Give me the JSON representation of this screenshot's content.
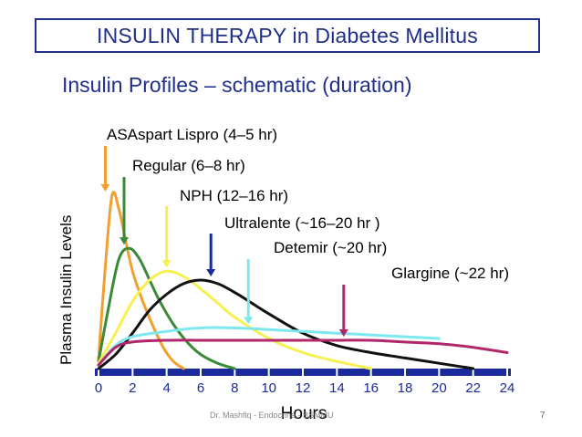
{
  "slide": {
    "title": "INSULIN THERAPY in Diabetes Mellitus",
    "subtitle": "Insulin Profiles – schematic (duration)",
    "footer": "Dr. Mashfiq - Endocrine - BSMMU",
    "page_number": "7"
  },
  "chart_data": {
    "type": "line",
    "xlabel": "Hours",
    "ylabel": "Plasma Insulin Levels",
    "xticks": [
      "0",
      "2",
      "4",
      "6",
      "8",
      "10",
      "12",
      "14",
      "16",
      "18",
      "20",
      "22",
      "24"
    ],
    "xlim": [
      0,
      24
    ],
    "ylim": [
      0,
      1
    ],
    "grid": false,
    "series": [
      {
        "name": "ASAspart  Lispro   (4–5 hr)",
        "color": "#f0a030",
        "x": [
          0,
          0.4,
          0.8,
          1.2,
          1.6,
          2.0,
          2.6,
          3.2,
          3.8,
          4.4,
          5.0
        ],
        "y": [
          0.05,
          0.58,
          0.98,
          0.9,
          0.72,
          0.55,
          0.38,
          0.24,
          0.12,
          0.04,
          0.0
        ]
      },
      {
        "name": "Regular (6–8 hr)",
        "color": "#3a8a3a",
        "x": [
          0,
          0.6,
          1.2,
          1.8,
          2.4,
          3.0,
          3.6,
          4.4,
          5.2,
          6.0,
          7.0,
          8.0
        ],
        "y": [
          0.04,
          0.35,
          0.62,
          0.68,
          0.62,
          0.5,
          0.38,
          0.25,
          0.15,
          0.08,
          0.03,
          0.0
        ]
      },
      {
        "name": "NPH (12–16 hr)",
        "color": "#f8f050",
        "x": [
          0,
          1,
          2,
          3,
          4,
          5,
          6,
          7,
          8,
          10,
          12,
          14,
          16
        ],
        "y": [
          0.03,
          0.2,
          0.38,
          0.5,
          0.55,
          0.52,
          0.45,
          0.37,
          0.29,
          0.17,
          0.09,
          0.04,
          0.0
        ]
      },
      {
        "name": "Ultralente (~16–20 hr )",
        "color": "#111111",
        "x": [
          0,
          1,
          2,
          3,
          4,
          5,
          6,
          7,
          8,
          9,
          10,
          12,
          14,
          16,
          18,
          20,
          22
        ],
        "y": [
          0.0,
          0.08,
          0.2,
          0.33,
          0.42,
          0.48,
          0.5,
          0.48,
          0.43,
          0.37,
          0.31,
          0.2,
          0.13,
          0.09,
          0.06,
          0.03,
          0.0
        ]
      },
      {
        "name": "Detemir (~20 hr)",
        "color": "#7ee8f0",
        "x": [
          0,
          1,
          2,
          4,
          6,
          8,
          10,
          12,
          14,
          16,
          18,
          20
        ],
        "y": [
          0.02,
          0.13,
          0.18,
          0.21,
          0.23,
          0.23,
          0.22,
          0.21,
          0.2,
          0.19,
          0.18,
          0.17
        ]
      },
      {
        "name": "Glargine (~22 hr)",
        "color": "#b0286a",
        "x": [
          0,
          1,
          2,
          4,
          6,
          8,
          10,
          12,
          14,
          16,
          18,
          20,
          22,
          24
        ],
        "y": [
          0.02,
          0.12,
          0.15,
          0.16,
          0.16,
          0.16,
          0.16,
          0.16,
          0.16,
          0.16,
          0.15,
          0.14,
          0.12,
          0.09
        ]
      }
    ],
    "annotations": [
      {
        "text": "ASAspart  Lispro   (4–5 hr)",
        "color": "#f0a030",
        "arrow_x": 0.4,
        "arrow_y": 0.98
      },
      {
        "text": "Regular (6–8 hr)",
        "color": "#3a8a3a",
        "arrow_x": 1.5,
        "arrow_y": 0.68
      },
      {
        "text": "NPH (12–16 hr)",
        "color": "#f8f050",
        "arrow_x": 4.0,
        "arrow_y": 0.55
      },
      {
        "text": "Ultralente (~16–20 hr )",
        "color": "#1a2a9a",
        "arrow_x": 6.6,
        "arrow_y": 0.5
      },
      {
        "text": "Detemir (~20 hr)",
        "color": "#7ee8f0",
        "arrow_x": 8.8,
        "arrow_y": 0.23
      },
      {
        "text": "Glargine (~22 hr)",
        "color": "#b0286a",
        "arrow_x": 14.4,
        "arrow_y": 0.16
      }
    ],
    "axis_color": "#1a2a9a",
    "tick_label_color": "#1a2a9a"
  }
}
